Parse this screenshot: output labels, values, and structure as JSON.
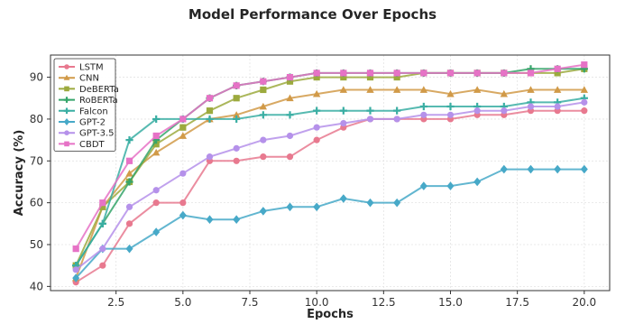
{
  "chart_data": {
    "type": "line",
    "title": "Model Performance Over Epochs",
    "xlabel": "Epochs",
    "ylabel": "Accuracy (%)",
    "xlim": [
      0.05,
      20.95
    ],
    "ylim": [
      39.0,
      95.3
    ],
    "xticks": [
      2.5,
      5.0,
      7.5,
      10.0,
      12.5,
      15.0,
      17.5,
      20.0
    ],
    "xtick_labels": [
      "2.5",
      "5.0",
      "7.5",
      "10.0",
      "12.5",
      "15.0",
      "17.5",
      "20.0"
    ],
    "yticks": [
      40,
      50,
      60,
      70,
      80,
      90
    ],
    "ytick_labels": [
      "40",
      "50",
      "60",
      "70",
      "80",
      "90"
    ],
    "grid": true,
    "legend_position": "upper-left",
    "x": [
      1,
      2,
      3,
      4,
      5,
      6,
      7,
      8,
      9,
      10,
      11,
      12,
      13,
      14,
      15,
      16,
      17,
      18,
      19,
      20
    ],
    "series": [
      {
        "name": "LSTM",
        "color": "#e8798f",
        "marker": "circle",
        "values": [
          41,
          45,
          55,
          60,
          60,
          70,
          70,
          71,
          71,
          75,
          78,
          80,
          80,
          80,
          80,
          81,
          81,
          82,
          82,
          82
        ]
      },
      {
        "name": "CNN",
        "color": "#d19a48",
        "marker": "triangle",
        "values": [
          42,
          59,
          67,
          72,
          76,
          80,
          81,
          83,
          85,
          86,
          87,
          87,
          87,
          87,
          86,
          87,
          86,
          87,
          87,
          87
        ]
      },
      {
        "name": "DeBERTa",
        "color": "#9caa3e",
        "marker": "square",
        "values": [
          45,
          59,
          65,
          74,
          78,
          82,
          85,
          87,
          89,
          90,
          90,
          90,
          90,
          91,
          91,
          91,
          91,
          91,
          91,
          92
        ]
      },
      {
        "name": "RoBERTa",
        "color": "#35a56a",
        "marker": "plus",
        "values": [
          45,
          55,
          65,
          75,
          80,
          85,
          88,
          89,
          90,
          91,
          91,
          91,
          91,
          91,
          91,
          91,
          91,
          92,
          92,
          92
        ]
      },
      {
        "name": "Falcon",
        "color": "#3aaea3",
        "marker": "plus",
        "values": [
          45,
          55,
          75,
          80,
          80,
          80,
          80,
          81,
          81,
          82,
          82,
          82,
          82,
          83,
          83,
          83,
          83,
          84,
          84,
          85
        ]
      },
      {
        "name": "GPT-2",
        "color": "#47a9c8",
        "marker": "diamond",
        "values": [
          42,
          49,
          49,
          53,
          57,
          56,
          56,
          58,
          59,
          59,
          61,
          60,
          60,
          64,
          64,
          65,
          68,
          68,
          68,
          68
        ]
      },
      {
        "name": "GPT-3.5",
        "color": "#b591ea",
        "marker": "circle",
        "values": [
          44,
          49,
          59,
          63,
          67,
          71,
          73,
          75,
          76,
          78,
          79,
          80,
          80,
          81,
          81,
          82,
          82,
          83,
          83,
          84
        ]
      },
      {
        "name": "CBDT",
        "color": "#e672c6",
        "marker": "square",
        "values": [
          49,
          60,
          70,
          76,
          80,
          85,
          88,
          89,
          90,
          91,
          91,
          91,
          91,
          91,
          91,
          91,
          91,
          91,
          92,
          93
        ]
      }
    ]
  }
}
